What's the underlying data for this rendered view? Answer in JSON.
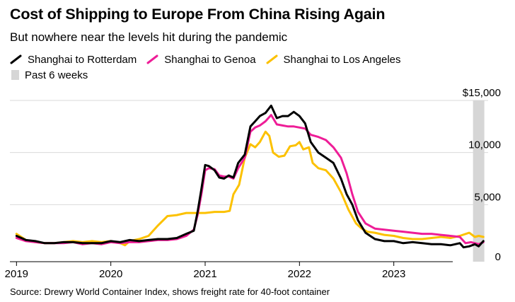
{
  "title": "Cost of Shipping to Europe From China Rising Again",
  "subtitle": "But nowhere near the levels hit during the pandemic",
  "source": "Source: Drewry World Container Index, shows freight rate for 40-foot container",
  "legend": {
    "rotterdam": "Shanghai to Rotterdam",
    "genoa": "Shanghai to Genoa",
    "la": "Shanghai to Los Angeles",
    "shade": "Past 6 weeks"
  },
  "colors": {
    "rotterdam": "#000000",
    "genoa": "#ee1d97",
    "la": "#fcc100",
    "shade": "#d6d6d6",
    "grid": "#d9d9d9"
  },
  "chart_data": {
    "type": "line",
    "x_unit": "year",
    "xlim": [
      2018.93,
      2024.0
    ],
    "ylim": [
      0,
      15000
    ],
    "y_ticks": [
      0,
      5000,
      10000,
      15000
    ],
    "y_tick_labels": [
      "0",
      "5,000",
      "10,000",
      "$15,000"
    ],
    "x_ticks": [
      2019,
      2020,
      2021,
      2022,
      2023
    ],
    "x_tick_labels": [
      "2019",
      "2020",
      "2021",
      "2022",
      "2023"
    ],
    "shaded_region": {
      "label": "Past 6 weeks",
      "x_start": 2023.84,
      "x_end": 2023.96
    },
    "series": [
      {
        "key": "rotterdam",
        "name": "Shanghai to Rotterdam",
        "points": [
          [
            2019.0,
            2000
          ],
          [
            2019.1,
            1600
          ],
          [
            2019.2,
            1500
          ],
          [
            2019.3,
            1300
          ],
          [
            2019.4,
            1300
          ],
          [
            2019.5,
            1400
          ],
          [
            2019.6,
            1400
          ],
          [
            2019.7,
            1300
          ],
          [
            2019.8,
            1300
          ],
          [
            2019.9,
            1300
          ],
          [
            2020.0,
            1500
          ],
          [
            2020.1,
            1400
          ],
          [
            2020.2,
            1600
          ],
          [
            2020.3,
            1500
          ],
          [
            2020.4,
            1600
          ],
          [
            2020.5,
            1700
          ],
          [
            2020.6,
            1700
          ],
          [
            2020.7,
            1800
          ],
          [
            2020.8,
            2200
          ],
          [
            2020.88,
            2500
          ],
          [
            2020.92,
            4300
          ],
          [
            2020.96,
            6500
          ],
          [
            2021.0,
            8800
          ],
          [
            2021.04,
            8700
          ],
          [
            2021.1,
            8300
          ],
          [
            2021.15,
            7600
          ],
          [
            2021.2,
            7500
          ],
          [
            2021.25,
            7800
          ],
          [
            2021.3,
            7600
          ],
          [
            2021.35,
            9000
          ],
          [
            2021.42,
            9800
          ],
          [
            2021.48,
            12500
          ],
          [
            2021.53,
            13000
          ],
          [
            2021.58,
            13500
          ],
          [
            2021.64,
            13800
          ],
          [
            2021.7,
            14500
          ],
          [
            2021.76,
            13300
          ],
          [
            2021.82,
            13500
          ],
          [
            2021.88,
            13500
          ],
          [
            2021.94,
            13900
          ],
          [
            2022.0,
            13500
          ],
          [
            2022.06,
            12800
          ],
          [
            2022.12,
            11000
          ],
          [
            2022.2,
            10000
          ],
          [
            2022.28,
            9500
          ],
          [
            2022.36,
            9000
          ],
          [
            2022.44,
            7500
          ],
          [
            2022.5,
            6000
          ],
          [
            2022.56,
            5000
          ],
          [
            2022.62,
            3500
          ],
          [
            2022.7,
            2300
          ],
          [
            2022.8,
            1700
          ],
          [
            2022.9,
            1500
          ],
          [
            2023.0,
            1500
          ],
          [
            2023.1,
            1300
          ],
          [
            2023.2,
            1400
          ],
          [
            2023.3,
            1300
          ],
          [
            2023.4,
            1200
          ],
          [
            2023.5,
            1200
          ],
          [
            2023.6,
            1100
          ],
          [
            2023.7,
            1300
          ],
          [
            2023.74,
            900
          ],
          [
            2023.8,
            1000
          ],
          [
            2023.86,
            1200
          ],
          [
            2023.9,
            1000
          ],
          [
            2023.95,
            1500
          ]
        ]
      },
      {
        "key": "genoa",
        "name": "Shanghai to Genoa",
        "points": [
          [
            2019.0,
            1800
          ],
          [
            2019.1,
            1500
          ],
          [
            2019.2,
            1400
          ],
          [
            2019.3,
            1300
          ],
          [
            2019.4,
            1300
          ],
          [
            2019.5,
            1300
          ],
          [
            2019.6,
            1400
          ],
          [
            2019.7,
            1200
          ],
          [
            2019.8,
            1300
          ],
          [
            2019.9,
            1200
          ],
          [
            2020.0,
            1400
          ],
          [
            2020.1,
            1300
          ],
          [
            2020.2,
            1400
          ],
          [
            2020.3,
            1400
          ],
          [
            2020.4,
            1500
          ],
          [
            2020.5,
            1600
          ],
          [
            2020.6,
            1600
          ],
          [
            2020.7,
            1700
          ],
          [
            2020.8,
            2000
          ],
          [
            2020.88,
            2600
          ],
          [
            2020.92,
            4000
          ],
          [
            2020.96,
            6000
          ],
          [
            2021.0,
            8300
          ],
          [
            2021.04,
            8500
          ],
          [
            2021.1,
            8400
          ],
          [
            2021.15,
            7800
          ],
          [
            2021.2,
            7700
          ],
          [
            2021.25,
            7700
          ],
          [
            2021.3,
            7500
          ],
          [
            2021.35,
            8500
          ],
          [
            2021.42,
            9500
          ],
          [
            2021.48,
            12000
          ],
          [
            2021.53,
            12400
          ],
          [
            2021.58,
            12600
          ],
          [
            2021.64,
            13000
          ],
          [
            2021.7,
            13600
          ],
          [
            2021.76,
            12700
          ],
          [
            2021.82,
            12600
          ],
          [
            2021.88,
            12500
          ],
          [
            2021.94,
            12500
          ],
          [
            2022.0,
            12400
          ],
          [
            2022.06,
            12300
          ],
          [
            2022.12,
            11700
          ],
          [
            2022.2,
            11500
          ],
          [
            2022.28,
            11200
          ],
          [
            2022.36,
            10500
          ],
          [
            2022.44,
            9500
          ],
          [
            2022.5,
            8000
          ],
          [
            2022.56,
            6000
          ],
          [
            2022.62,
            4300
          ],
          [
            2022.7,
            3200
          ],
          [
            2022.8,
            2700
          ],
          [
            2022.9,
            2600
          ],
          [
            2023.0,
            2500
          ],
          [
            2023.1,
            2400
          ],
          [
            2023.2,
            2300
          ],
          [
            2023.3,
            2200
          ],
          [
            2023.4,
            2200
          ],
          [
            2023.5,
            2100
          ],
          [
            2023.6,
            2000
          ],
          [
            2023.7,
            1900
          ],
          [
            2023.76,
            1300
          ],
          [
            2023.82,
            1400
          ],
          [
            2023.86,
            1300
          ],
          [
            2023.9,
            1200
          ],
          [
            2023.95,
            1400
          ]
        ]
      },
      {
        "key": "la",
        "name": "Shanghai to Los Angeles",
        "points": [
          [
            2019.0,
            2200
          ],
          [
            2019.1,
            1600
          ],
          [
            2019.2,
            1400
          ],
          [
            2019.3,
            1300
          ],
          [
            2019.4,
            1300
          ],
          [
            2019.5,
            1400
          ],
          [
            2019.6,
            1500
          ],
          [
            2019.7,
            1400
          ],
          [
            2019.8,
            1500
          ],
          [
            2019.9,
            1400
          ],
          [
            2020.0,
            1500
          ],
          [
            2020.1,
            1300
          ],
          [
            2020.15,
            1100
          ],
          [
            2020.2,
            1500
          ],
          [
            2020.3,
            1700
          ],
          [
            2020.4,
            2000
          ],
          [
            2020.5,
            3000
          ],
          [
            2020.6,
            3900
          ],
          [
            2020.7,
            4000
          ],
          [
            2020.8,
            4200
          ],
          [
            2020.9,
            4200
          ],
          [
            2021.0,
            4200
          ],
          [
            2021.1,
            4300
          ],
          [
            2021.2,
            4300
          ],
          [
            2021.26,
            4400
          ],
          [
            2021.3,
            6000
          ],
          [
            2021.36,
            6900
          ],
          [
            2021.42,
            9500
          ],
          [
            2021.48,
            10800
          ],
          [
            2021.53,
            10500
          ],
          [
            2021.58,
            11000
          ],
          [
            2021.64,
            12000
          ],
          [
            2021.68,
            11600
          ],
          [
            2021.72,
            10000
          ],
          [
            2021.78,
            9600
          ],
          [
            2021.84,
            9700
          ],
          [
            2021.9,
            10600
          ],
          [
            2021.96,
            10700
          ],
          [
            2022.0,
            11000
          ],
          [
            2022.04,
            10300
          ],
          [
            2022.1,
            10500
          ],
          [
            2022.14,
            9000
          ],
          [
            2022.2,
            8500
          ],
          [
            2022.28,
            8300
          ],
          [
            2022.36,
            7500
          ],
          [
            2022.44,
            6200
          ],
          [
            2022.52,
            4500
          ],
          [
            2022.6,
            3200
          ],
          [
            2022.66,
            2700
          ],
          [
            2022.72,
            2400
          ],
          [
            2022.8,
            2300
          ],
          [
            2022.9,
            2100
          ],
          [
            2023.0,
            2000
          ],
          [
            2023.1,
            1800
          ],
          [
            2023.2,
            1700
          ],
          [
            2023.3,
            1700
          ],
          [
            2023.4,
            1800
          ],
          [
            2023.5,
            1900
          ],
          [
            2023.6,
            1800
          ],
          [
            2023.7,
            2000
          ],
          [
            2023.8,
            2300
          ],
          [
            2023.86,
            1900
          ],
          [
            2023.9,
            2000
          ],
          [
            2023.95,
            1900
          ]
        ]
      }
    ]
  }
}
